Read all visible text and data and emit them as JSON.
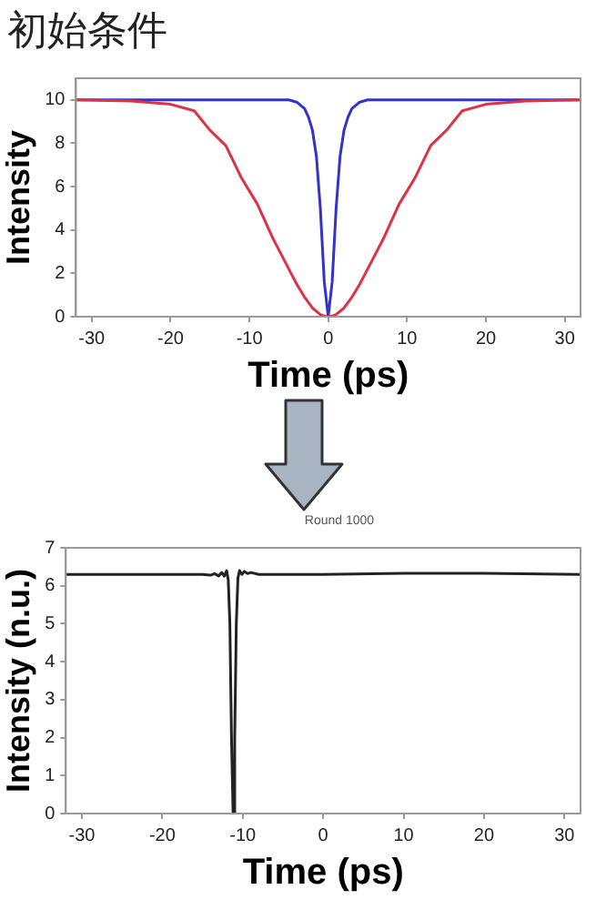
{
  "chart_data": [
    {
      "type": "line",
      "title": "初始条件",
      "xlabel": "Time (ps)",
      "ylabel": "Intensity",
      "xlim": [
        -32,
        32
      ],
      "xticks": [
        -30,
        -20,
        -10,
        0,
        10,
        20,
        30
      ],
      "ylim": [
        0,
        11
      ],
      "yticks": [
        0,
        2,
        4,
        6,
        8,
        10
      ],
      "series": [
        {
          "color": "#dd3344",
          "x": [
            -32,
            -25,
            -20,
            -17,
            -15,
            -13,
            -11,
            -10,
            -9,
            -8,
            -7,
            -6,
            -5,
            -4,
            -3,
            -2,
            -1,
            -0.5,
            0,
            0.5,
            1,
            2,
            3,
            4,
            5,
            6,
            7,
            8,
            9,
            10,
            11,
            13,
            15,
            17,
            20,
            25,
            32
          ],
          "values": [
            10,
            9.95,
            9.8,
            9.5,
            8.6,
            7.9,
            6.4,
            5.8,
            5.2,
            4.4,
            3.6,
            2.9,
            2.2,
            1.5,
            0.9,
            0.4,
            0.1,
            0.03,
            0,
            0.03,
            0.1,
            0.4,
            0.9,
            1.5,
            2.2,
            2.9,
            3.6,
            4.4,
            5.2,
            5.8,
            6.4,
            7.9,
            8.6,
            9.5,
            9.8,
            9.95,
            10
          ]
        },
        {
          "color": "#3333cc",
          "x": [
            -32,
            -5,
            -4,
            -3,
            -2.5,
            -2,
            -1.5,
            -1,
            -0.5,
            0,
            0.5,
            1,
            1.5,
            2,
            2.5,
            3,
            4,
            5,
            32
          ],
          "values": [
            10,
            10,
            9.9,
            9.6,
            9.2,
            8.6,
            7.4,
            5,
            1.6,
            0,
            1.6,
            5,
            7.4,
            8.6,
            9.2,
            9.6,
            9.9,
            10,
            10
          ]
        }
      ]
    },
    {
      "type": "line",
      "title": "Round 1000",
      "xlabel": "Time (ps)",
      "ylabel": "Intensity (n.u.)",
      "xlim": [
        -32,
        32
      ],
      "xticks": [
        -30,
        -20,
        -10,
        0,
        10,
        20,
        30
      ],
      "ylim": [
        0,
        7
      ],
      "yticks": [
        0,
        1,
        2,
        3,
        4,
        5,
        6,
        7
      ],
      "series": [
        {
          "color": "#222222",
          "x": [
            -32,
            -20,
            -15,
            -14,
            -13.5,
            -13,
            -12.6,
            -12.3,
            -12,
            -11.8,
            -11.6,
            -11.4,
            -11.2,
            -11,
            -10.8,
            -10.6,
            -10.4,
            -10.1,
            -9.8,
            -9.4,
            -9,
            -8,
            -5,
            0,
            10,
            20,
            32
          ],
          "values": [
            6.3,
            6.3,
            6.3,
            6.28,
            6.32,
            6.26,
            6.35,
            6.25,
            6.4,
            6.15,
            5,
            2,
            0,
            2,
            5,
            6.2,
            6.4,
            6.3,
            6.38,
            6.32,
            6.35,
            6.3,
            6.3,
            6.3,
            6.33,
            6.33,
            6.3
          ]
        }
      ]
    }
  ]
}
